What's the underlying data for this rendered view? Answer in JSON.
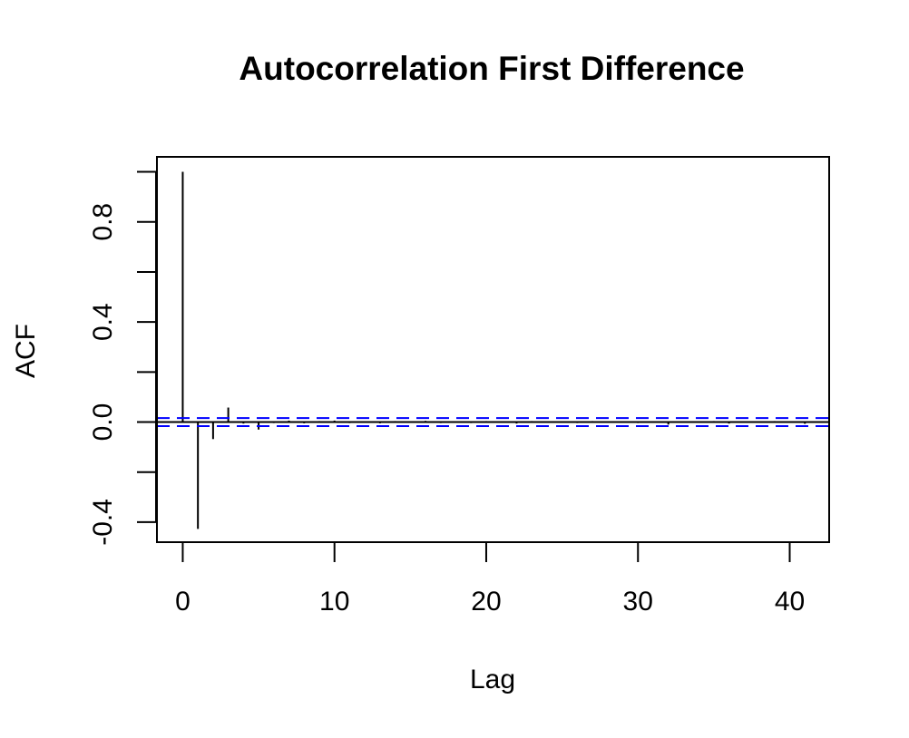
{
  "chart_data": {
    "type": "bar",
    "title": "Autocorrelation First Difference",
    "xlabel": "Lag",
    "ylabel": "ACF",
    "xlim": [
      -1.7,
      42.6
    ],
    "ylim": [
      -0.48,
      1.06
    ],
    "x_ticks": [
      0,
      10,
      20,
      30,
      40
    ],
    "x_tick_labels": [
      "0",
      "10",
      "20",
      "30",
      "40"
    ],
    "y_ticks": [
      -0.4,
      -0.2,
      0.0,
      0.2,
      0.4,
      0.6,
      0.8,
      1.0
    ],
    "y_tick_labels": [
      "-0.4",
      "",
      "0.0",
      "",
      "0.4",
      "",
      "0.8",
      ""
    ],
    "lags": [
      0,
      1,
      2,
      3,
      4,
      5,
      6,
      7,
      8,
      9,
      10,
      11,
      12,
      13,
      14,
      15,
      16,
      17,
      18,
      19,
      20,
      21,
      22,
      23,
      24,
      25,
      26,
      27,
      28,
      29,
      30,
      31,
      32,
      33,
      34,
      35,
      36,
      37,
      38,
      39,
      40,
      41
    ],
    "values": [
      1.0,
      -0.427,
      -0.068,
      0.058,
      -0.006,
      -0.03,
      -0.004,
      0.006,
      -0.005,
      0.004,
      0.006,
      -0.004,
      0.003,
      -0.005,
      0.004,
      -0.003,
      0.005,
      -0.004,
      0.003,
      -0.004,
      0.004,
      -0.003,
      -0.006,
      0.004,
      -0.003,
      0.003,
      -0.004,
      0.004,
      -0.003,
      0.003,
      -0.004,
      0.003,
      -0.01,
      0.003,
      -0.003,
      0.004,
      -0.006,
      0.003,
      -0.003,
      0.004,
      -0.003,
      -0.007
    ],
    "confidence_bound": 0.016,
    "confidence_color": "#0000ff",
    "grid": false,
    "legend": false
  }
}
